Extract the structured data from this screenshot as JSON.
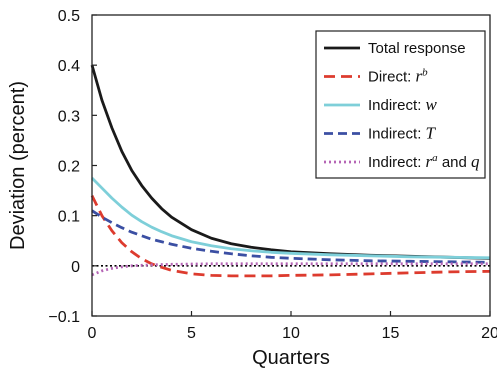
{
  "chart_data": {
    "type": "line",
    "xlabel": "Quarters",
    "ylabel": "Deviation (percent)",
    "xlim": [
      0,
      20
    ],
    "ylim": [
      -0.1,
      0.5
    ],
    "xticks": [
      "0",
      "5",
      "10",
      "15",
      "20"
    ],
    "yticks": [
      "−0.1",
      "0",
      "0.1",
      "0.2",
      "0.3",
      "0.4",
      "0.5"
    ],
    "grid": false,
    "legend_position": "top-right",
    "zero_line": {
      "y": 0,
      "style": "dotted",
      "color": "#000000"
    },
    "x": [
      0,
      0.5,
      1,
      1.5,
      2,
      2.5,
      3,
      3.5,
      4,
      5,
      6,
      7,
      8,
      9,
      10,
      12,
      14,
      16,
      18,
      20
    ],
    "series": [
      {
        "name": "Total response",
        "legend_label": "Total response",
        "color": "#1a1a1a",
        "dash": "solid",
        "values": [
          0.4,
          0.33,
          0.275,
          0.228,
          0.19,
          0.16,
          0.135,
          0.114,
          0.097,
          0.072,
          0.055,
          0.044,
          0.037,
          0.032,
          0.028,
          0.024,
          0.021,
          0.019,
          0.017,
          0.015
        ]
      },
      {
        "name": "Direct: r^b",
        "legend_label": "Direct: ",
        "legend_math": "r",
        "legend_sup": "b",
        "color": "#dd3b2e",
        "dash": "long-dash",
        "values": [
          0.14,
          0.1,
          0.07,
          0.046,
          0.028,
          0.014,
          0.004,
          -0.003,
          -0.009,
          -0.016,
          -0.019,
          -0.02,
          -0.02,
          -0.02,
          -0.019,
          -0.018,
          -0.016,
          -0.014,
          -0.012,
          -0.011
        ]
      },
      {
        "name": "Indirect: w",
        "legend_label": "Indirect: ",
        "legend_math": "w",
        "color": "#7ecfd9",
        "dash": "solid",
        "values": [
          0.175,
          0.155,
          0.135,
          0.117,
          0.101,
          0.088,
          0.077,
          0.068,
          0.06,
          0.048,
          0.04,
          0.034,
          0.03,
          0.027,
          0.025,
          0.022,
          0.02,
          0.018,
          0.017,
          0.016
        ]
      },
      {
        "name": "Indirect: T",
        "legend_label": "Indirect: ",
        "legend_math": "T",
        "color": "#3b4fa3",
        "dash": "dash",
        "values": [
          0.11,
          0.097,
          0.086,
          0.076,
          0.067,
          0.06,
          0.053,
          0.048,
          0.043,
          0.035,
          0.029,
          0.024,
          0.02,
          0.017,
          0.015,
          0.012,
          0.01,
          0.009,
          0.008,
          0.007
        ]
      },
      {
        "name": "Indirect: r^a and q",
        "legend_label": "Indirect: ",
        "legend_math": "r",
        "legend_sup": "a",
        "legend_suffix": " and ",
        "legend_math2": "q",
        "color": "#b565b5",
        "dash": "dotted",
        "values": [
          -0.018,
          -0.01,
          -0.005,
          -0.002,
          0.0,
          0.001,
          0.002,
          0.0025,
          0.003,
          0.0035,
          0.004,
          0.004,
          0.004,
          0.004,
          0.004,
          0.004,
          0.004,
          0.004,
          0.004,
          0.004
        ]
      }
    ]
  }
}
